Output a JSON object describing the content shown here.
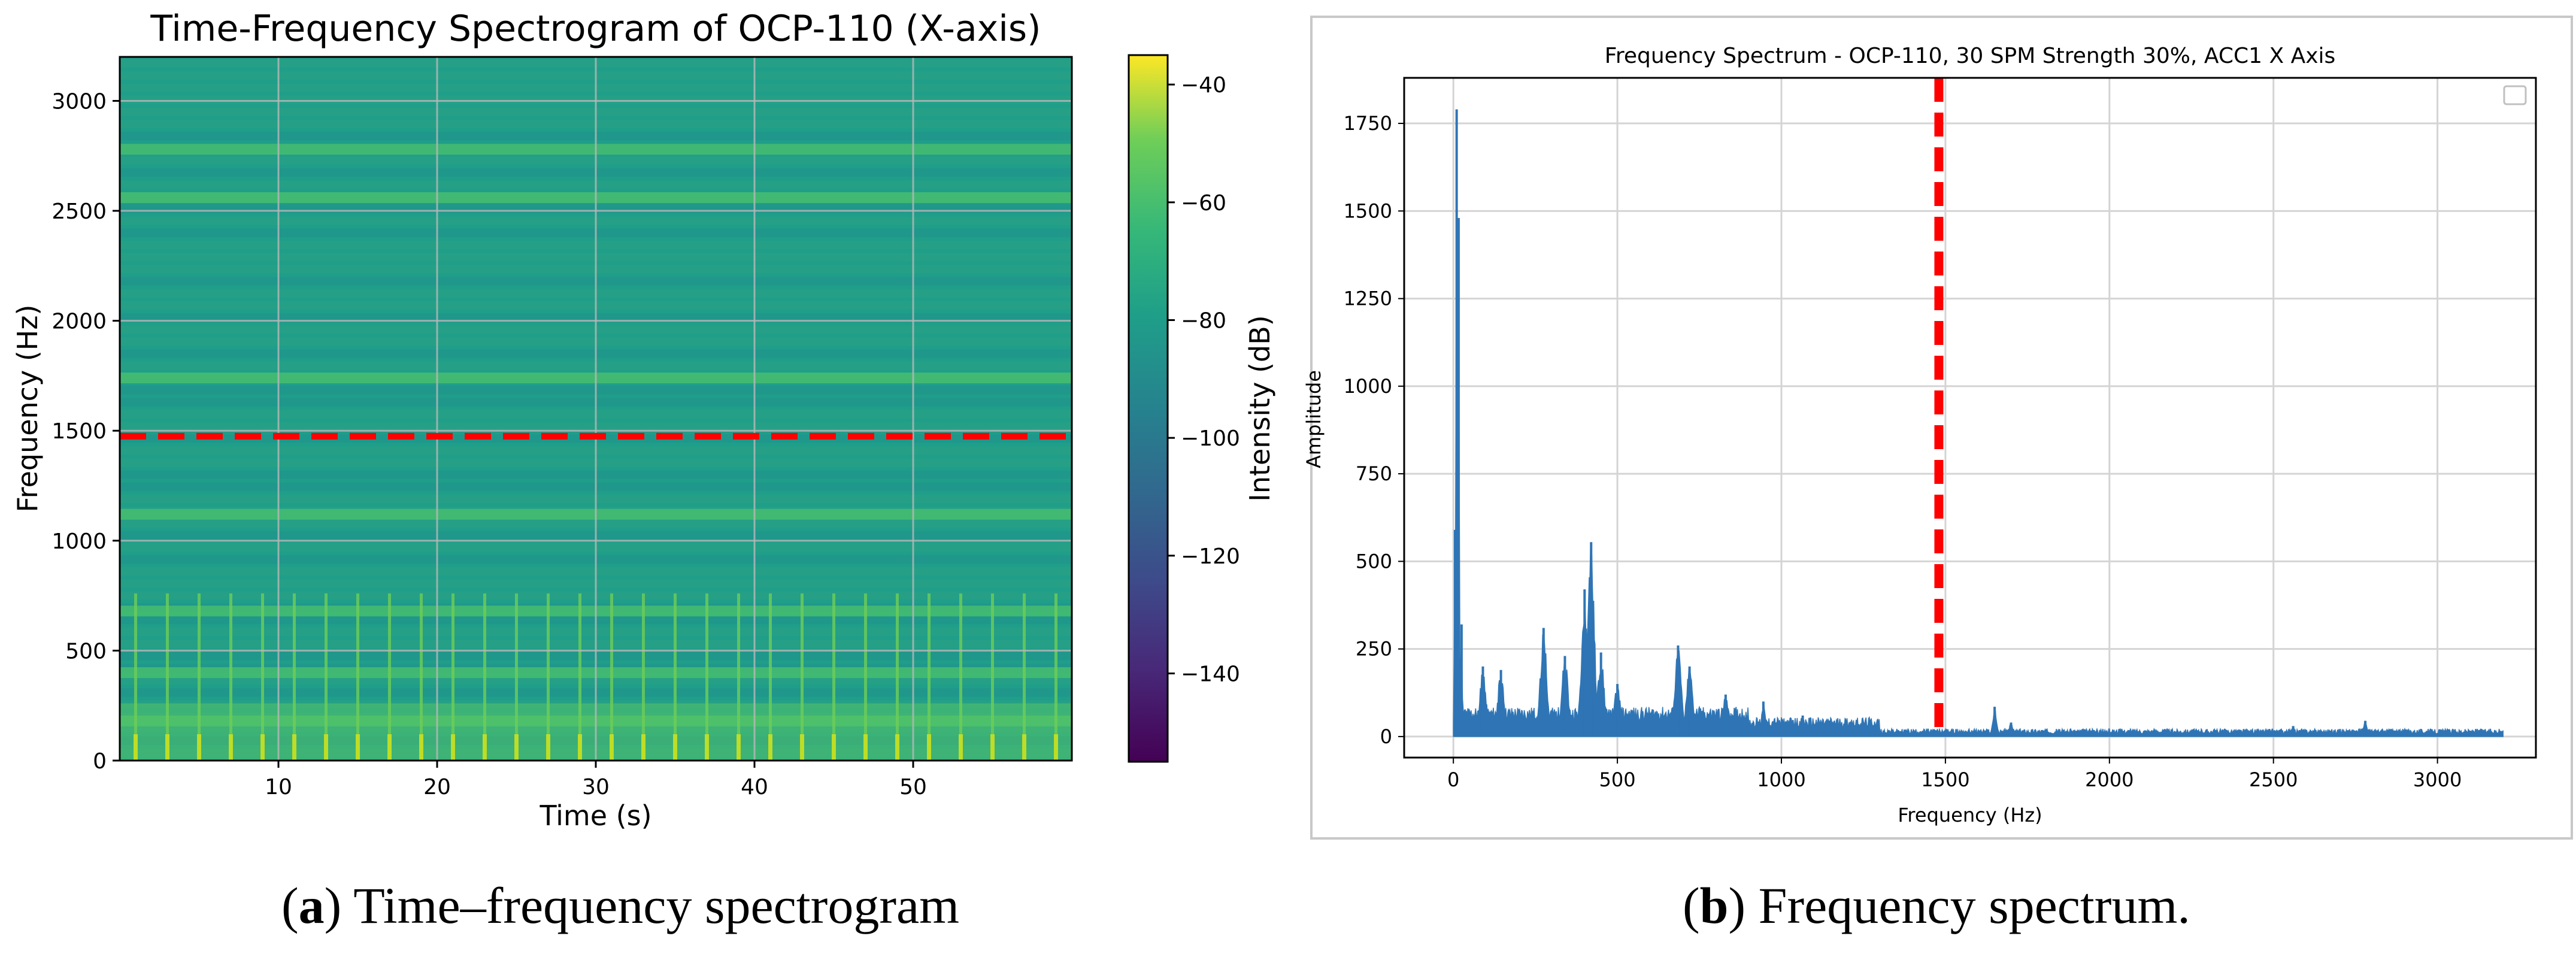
{
  "chart_data": [
    {
      "type": "heatmap",
      "title": "Time-Frequency Spectrogram of OCP-110 (X-axis)",
      "xlabel": "Time (s)",
      "ylabel": "Frequency (Hz)",
      "colorbar_label": "Intensity (dB)",
      "xlim": [
        0,
        60
      ],
      "ylim": [
        0,
        3200
      ],
      "x_ticks": [
        10,
        20,
        30,
        40,
        50
      ],
      "y_ticks": [
        0,
        500,
        1000,
        1500,
        2000,
        2500,
        3000
      ],
      "colorbar_range": [
        -155,
        -35
      ],
      "colorbar_ticks": [
        -40,
        -60,
        -80,
        -100,
        -120,
        -140
      ],
      "reference_line": {
        "axis": "y",
        "value": 1475,
        "style": "dashed",
        "color": "#ff0000"
      },
      "impulse_interval_s": 2,
      "horizontal_bands_hz": [
        2780,
        2560,
        1740,
        1120,
        680,
        400,
        180
      ],
      "grid": true,
      "colormap": "viridis"
    },
    {
      "type": "line",
      "title": "Frequency Spectrum - OCP-110, 30 SPM Strength 30%, ACC1 X Axis",
      "xlabel": "Frequency (Hz)",
      "ylabel": "Amplitude",
      "xlim": [
        -150,
        3300
      ],
      "ylim": [
        -60,
        1880
      ],
      "x_ticks": [
        0,
        500,
        1000,
        1500,
        2000,
        2500,
        3000
      ],
      "y_ticks": [
        0,
        250,
        500,
        750,
        1000,
        1250,
        1500,
        1750
      ],
      "series_color": "#2f75b5",
      "reference_line": {
        "axis": "x",
        "value": 1480,
        "style": "dashed",
        "color": "#ff0000"
      },
      "legend": "top-right (empty)",
      "grid": true,
      "peaks": [
        {
          "x": 5,
          "y": 590
        },
        {
          "x": 10,
          "y": 1790
        },
        {
          "x": 16,
          "y": 1480
        },
        {
          "x": 25,
          "y": 320
        },
        {
          "x": 90,
          "y": 200
        },
        {
          "x": 145,
          "y": 190
        },
        {
          "x": 275,
          "y": 310
        },
        {
          "x": 340,
          "y": 230
        },
        {
          "x": 400,
          "y": 420
        },
        {
          "x": 420,
          "y": 555
        },
        {
          "x": 450,
          "y": 240
        },
        {
          "x": 500,
          "y": 150
        },
        {
          "x": 685,
          "y": 260
        },
        {
          "x": 720,
          "y": 200
        },
        {
          "x": 830,
          "y": 120
        },
        {
          "x": 945,
          "y": 100
        },
        {
          "x": 1065,
          "y": 60
        },
        {
          "x": 1650,
          "y": 85
        },
        {
          "x": 1700,
          "y": 40
        },
        {
          "x": 2560,
          "y": 30
        },
        {
          "x": 2780,
          "y": 45
        }
      ]
    }
  ],
  "captions": {
    "a_label": "a",
    "a_text": ") Time–frequency spectrogram",
    "b_label": "b",
    "b_text": ") Frequency spectrum."
  }
}
